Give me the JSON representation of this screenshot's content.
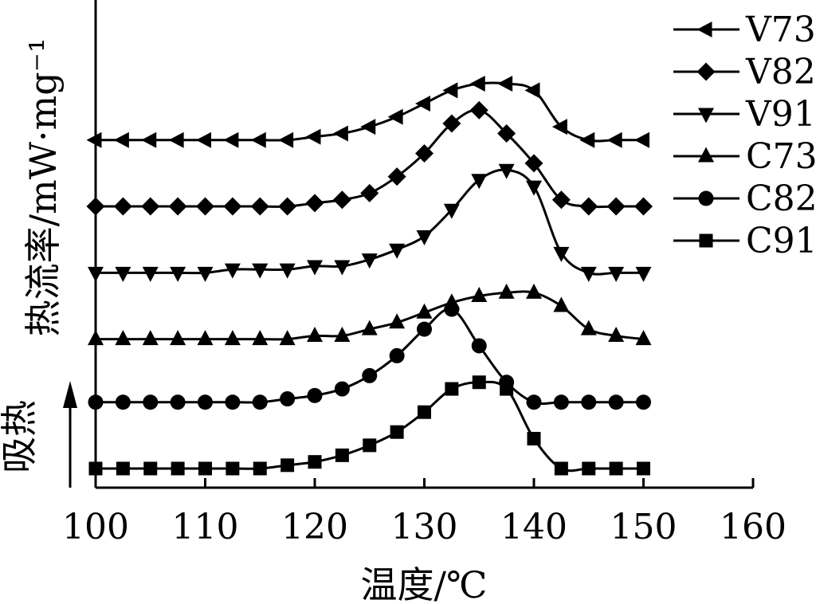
{
  "chart_data": {
    "type": "line",
    "xlabel": "温度/℃",
    "ylabel": "热流率/mW·mg⁻¹",
    "yarrow_label": "吸热",
    "xlim": [
      100,
      160
    ],
    "xticks": [
      100,
      110,
      120,
      130,
      140,
      150,
      160
    ],
    "legend_position": "top-right",
    "grid": false,
    "x": [
      100,
      102.5,
      105,
      107.5,
      110,
      112.5,
      115,
      117.5,
      120,
      122.5,
      125,
      127.5,
      130,
      132.5,
      135,
      137.5,
      140,
      142.5,
      145,
      147.5,
      150
    ],
    "series": [
      {
        "name": "V73",
        "marker": "triangle-left",
        "values": [
          0.9,
          0.9,
          0.9,
          0.9,
          0.9,
          0.9,
          0.9,
          0.9,
          0.91,
          0.92,
          0.94,
          0.97,
          1.01,
          1.05,
          1.07,
          1.07,
          1.05,
          0.94,
          0.9,
          0.9,
          0.9
        ]
      },
      {
        "name": "V82",
        "marker": "diamond",
        "values": [
          0.7,
          0.7,
          0.7,
          0.7,
          0.7,
          0.7,
          0.7,
          0.7,
          0.71,
          0.72,
          0.74,
          0.79,
          0.86,
          0.95,
          0.99,
          0.92,
          0.83,
          0.72,
          0.7,
          0.7,
          0.7
        ]
      },
      {
        "name": "V91",
        "marker": "triangle-down",
        "values": [
          0.5,
          0.5,
          0.5,
          0.5,
          0.5,
          0.51,
          0.51,
          0.51,
          0.52,
          0.52,
          0.54,
          0.57,
          0.61,
          0.69,
          0.78,
          0.81,
          0.76,
          0.56,
          0.5,
          0.5,
          0.5
        ]
      },
      {
        "name": "C73",
        "marker": "triangle-up",
        "values": [
          0.3,
          0.3,
          0.3,
          0.3,
          0.3,
          0.3,
          0.3,
          0.3,
          0.31,
          0.31,
          0.33,
          0.35,
          0.38,
          0.41,
          0.43,
          0.44,
          0.44,
          0.4,
          0.33,
          0.31,
          0.3
        ]
      },
      {
        "name": "C82",
        "marker": "circle",
        "values": [
          0.11,
          0.11,
          0.11,
          0.11,
          0.11,
          0.11,
          0.11,
          0.12,
          0.13,
          0.15,
          0.19,
          0.25,
          0.33,
          0.39,
          0.28,
          0.17,
          0.11,
          0.11,
          0.11,
          0.11,
          0.11
        ]
      },
      {
        "name": "C91",
        "marker": "square",
        "values": [
          -0.09,
          -0.09,
          -0.09,
          -0.09,
          -0.09,
          -0.09,
          -0.09,
          -0.08,
          -0.07,
          -0.05,
          -0.02,
          0.02,
          0.08,
          0.15,
          0.17,
          0.15,
          0.0,
          -0.09,
          -0.09,
          -0.09,
          -0.09
        ]
      }
    ]
  }
}
